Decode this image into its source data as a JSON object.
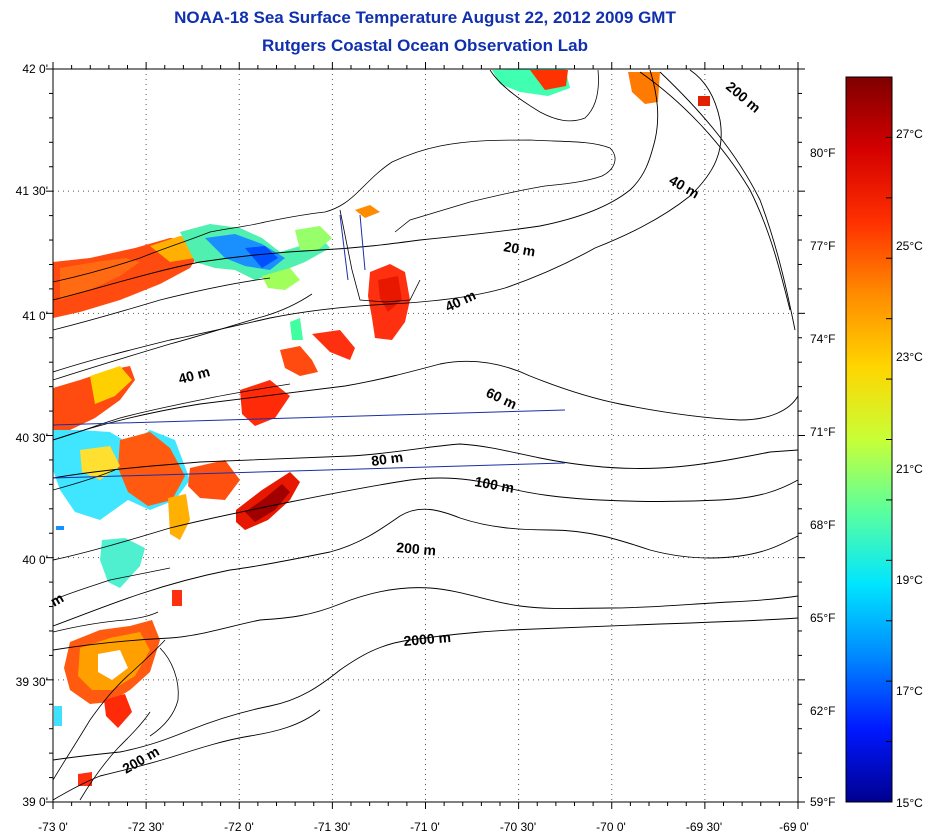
{
  "header": {
    "title": "NOAA-18 Sea Surface Temperature August 22, 2012 2009 GMT",
    "subtitle": "Rutgers Coastal Ocean Observation Lab"
  },
  "map": {
    "lat_labels": [
      "42 0'",
      "41 30'",
      "41 0'",
      "40 30'",
      "40 0'",
      "39 30'",
      "39 0'"
    ],
    "lon_labels": [
      "-73 0'",
      "-72 30'",
      "-72 0'",
      "-71 30'",
      "-71 0'",
      "-70 30'",
      "-70 0'",
      "-69 30'",
      "-69 0'"
    ],
    "contour_labels": [
      {
        "id": "contour-label-200m-ne",
        "text": "200 m"
      },
      {
        "id": "contour-label-40m-ne",
        "text": "40 m"
      },
      {
        "id": "contour-label-20m",
        "text": "20 m"
      },
      {
        "id": "contour-label-40m-mid",
        "text": "40 m"
      },
      {
        "id": "contour-label-40m-west",
        "text": "40 m"
      },
      {
        "id": "contour-label-60m",
        "text": "60 m"
      },
      {
        "id": "contour-label-80m",
        "text": "80 m"
      },
      {
        "id": "contour-label-100m",
        "text": "100 m"
      },
      {
        "id": "contour-label-200m",
        "text": "200 m"
      },
      {
        "id": "contour-label-2000m",
        "text": "2000 m"
      },
      {
        "id": "contour-label-200m-sw",
        "text": "200 m"
      },
      {
        "id": "contour-label-m-edge",
        "text": "m"
      }
    ]
  },
  "colorbar": {
    "celsius_labels": [
      "27°C",
      "25°C",
      "23°C",
      "21°C",
      "19°C",
      "17°C",
      "15°C"
    ],
    "fahrenheit_labels": [
      "80°F",
      "77°F",
      "74°F",
      "71°F",
      "68°F",
      "65°F",
      "62°F",
      "59°F"
    ],
    "colors": [
      "#7f0000",
      "#d40000",
      "#ff3000",
      "#ff8c00",
      "#ffd500",
      "#c8ff37",
      "#5aff9e",
      "#00e5ff",
      "#0088ff",
      "#0018ff",
      "#00008f"
    ]
  }
}
